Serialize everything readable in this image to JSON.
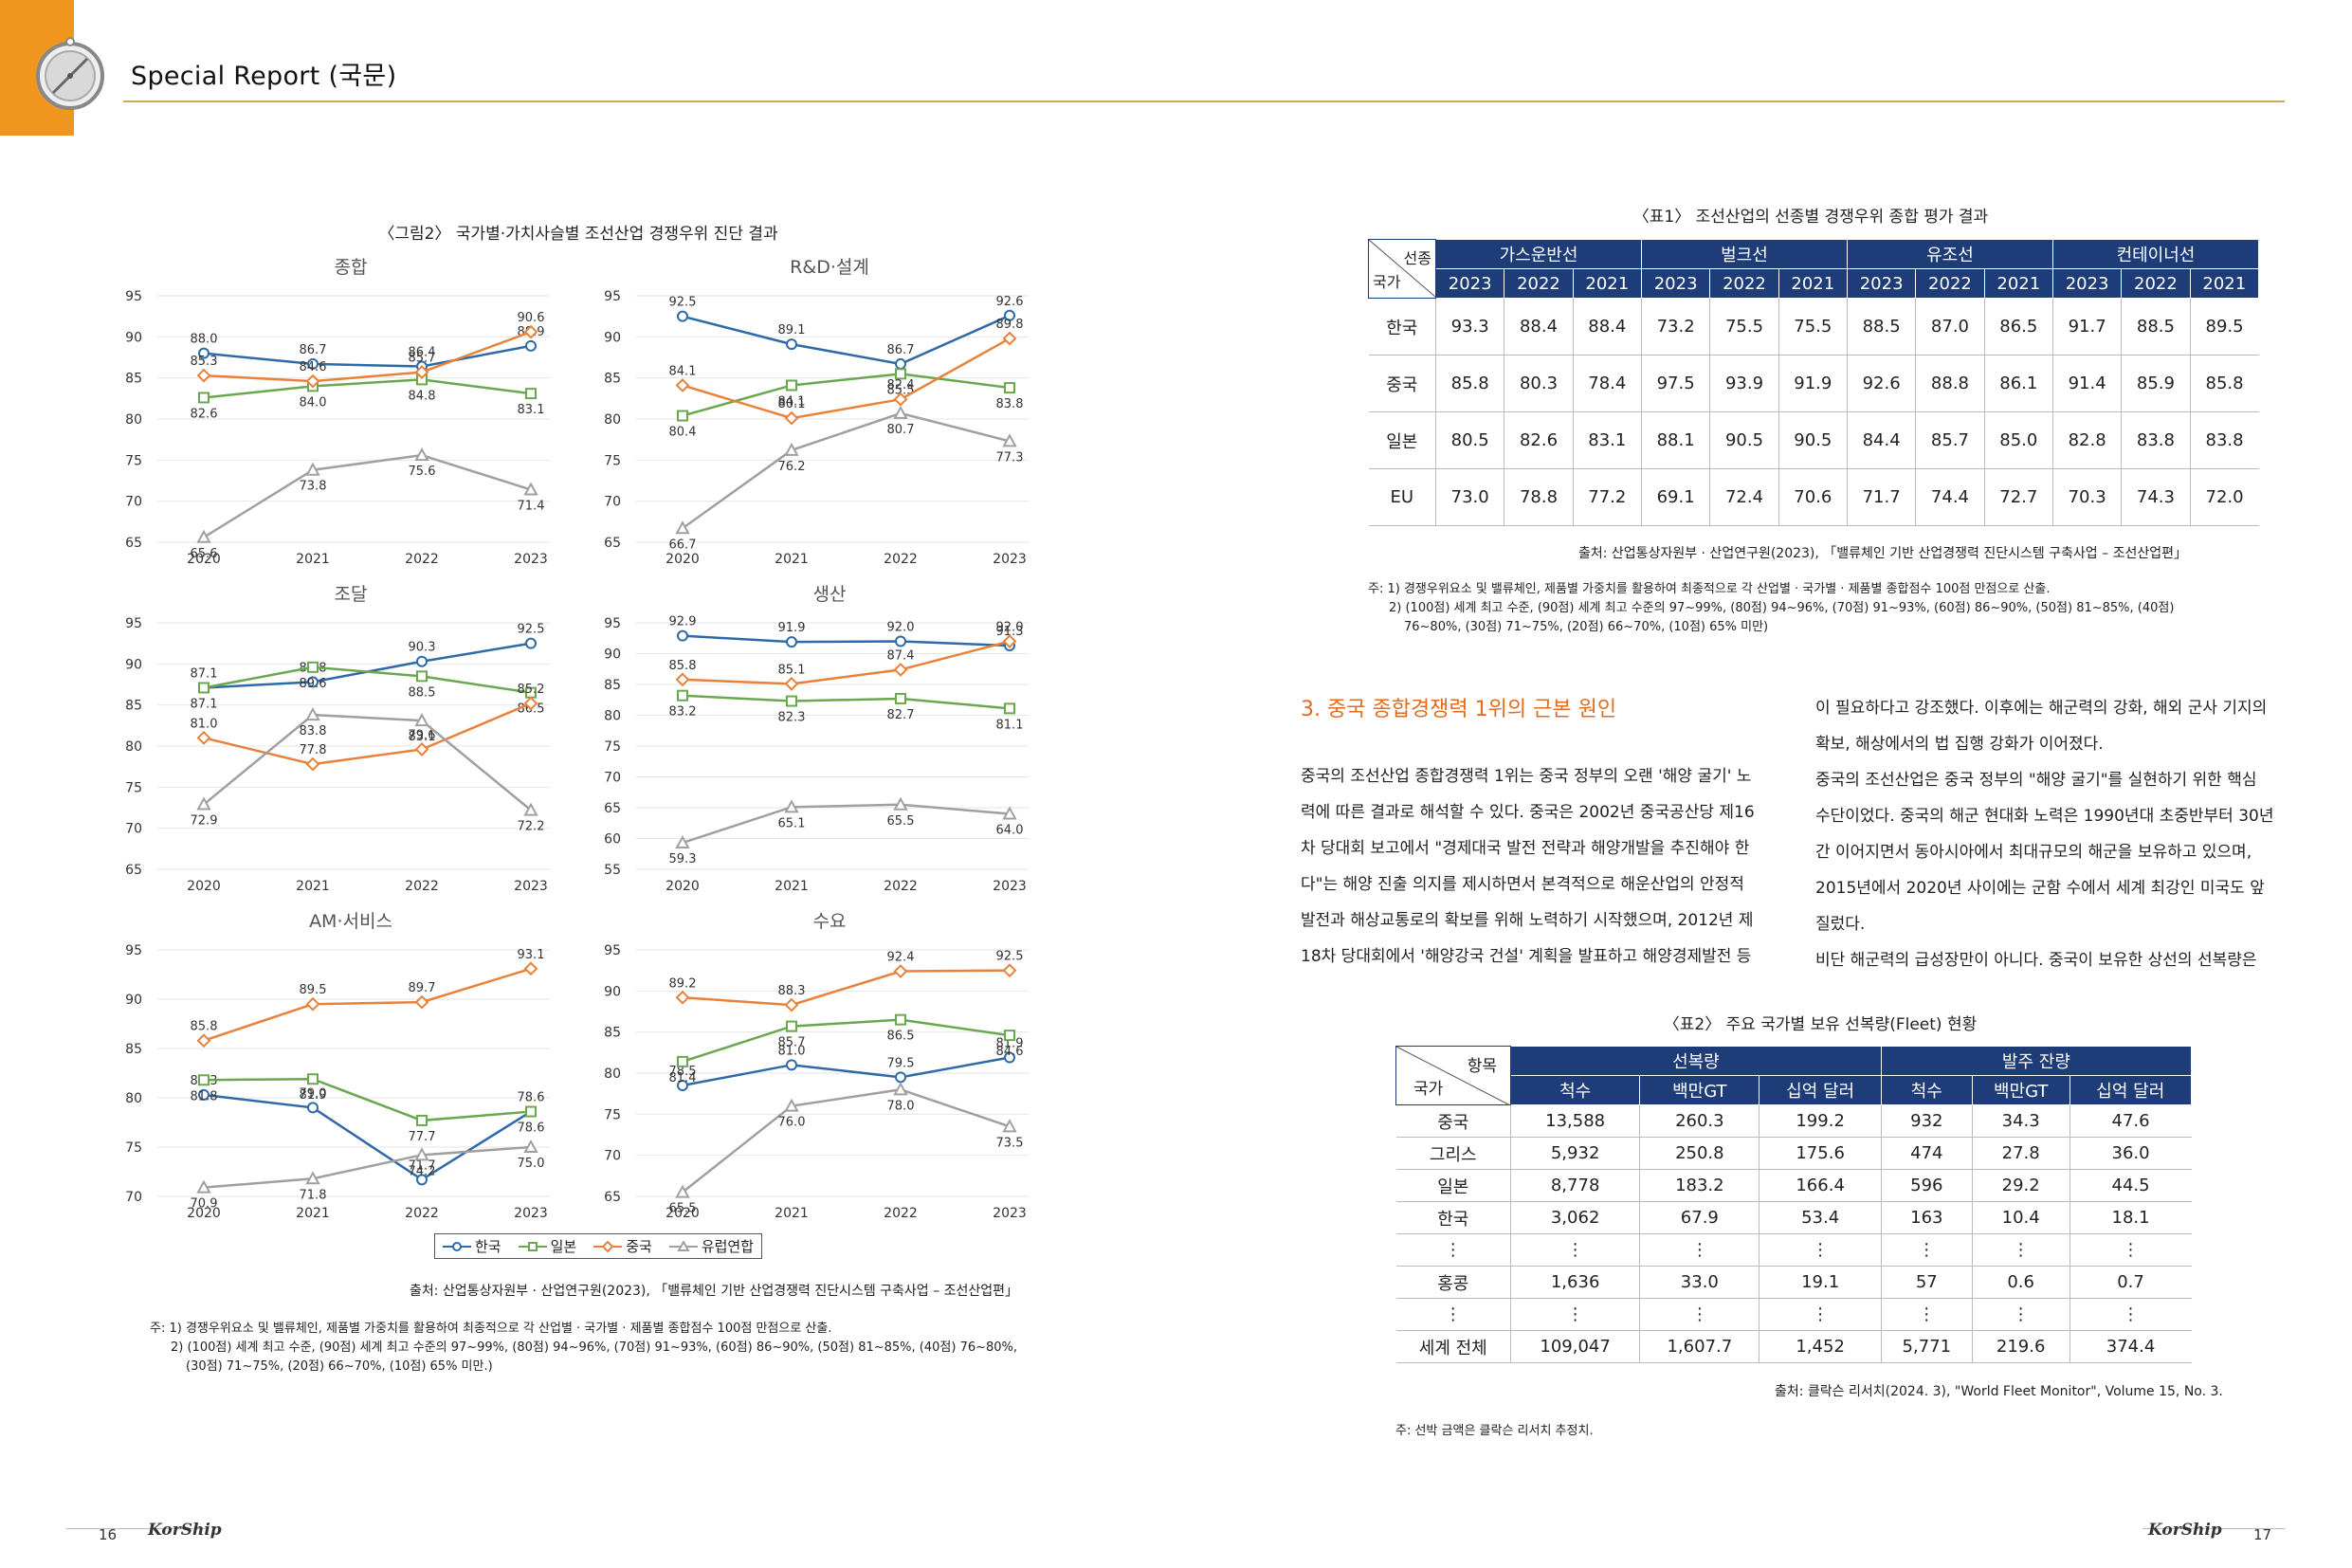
{
  "header": {
    "title": "Special Report (국문)"
  },
  "figure2": {
    "title": "〈그림2〉 국가별·가치사슬별 조선산업 경쟁우위 진단 결과",
    "source": "출처: 산업통상자원부 · 산업연구원(2023), 「밸류체인 기반 산업경쟁력 진단시스템 구축사업 – 조선산업편」",
    "note1": "주: 1) 경쟁우위요소 및 밸류체인, 제품별 가중치를 활용하여 최종적으로 각 산업별 · 국가별 · 제품별 종합점수 100점 만점으로 산출.",
    "note2": "2) (100점) 세계 최고 수준, (90점) 세계 최고 수준의 97~99%, (80점) 94~96%, (70점) 91~93%, (60점) 86~90%, (50점) 81~85%, (40점) 76~80%,",
    "note3": "(30점) 71~75%, (20점) 66~70%, (10점) 65% 미만.)",
    "legend": [
      "한국",
      "일본",
      "중국",
      "유럽연합"
    ]
  },
  "chart_data": [
    {
      "type": "line",
      "title": "종합",
      "categories": [
        "2020",
        "2021",
        "2022",
        "2023"
      ],
      "ylim": [
        65,
        95
      ],
      "yticks": [
        65,
        70,
        75,
        80,
        85,
        90,
        95
      ],
      "series": [
        {
          "name": "한국",
          "values": [
            88.0,
            86.7,
            86.4,
            88.9
          ]
        },
        {
          "name": "일본",
          "values": [
            82.6,
            84.0,
            84.8,
            83.1
          ]
        },
        {
          "name": "중국",
          "values": [
            85.3,
            84.6,
            85.7,
            90.6
          ]
        },
        {
          "name": "유럽연합",
          "values": [
            65.6,
            73.8,
            75.6,
            71.4
          ]
        }
      ]
    },
    {
      "type": "line",
      "title": "R&D·설계",
      "categories": [
        "2020",
        "2021",
        "2022",
        "2023"
      ],
      "ylim": [
        65,
        95
      ],
      "yticks": [
        65,
        70,
        75,
        80,
        85,
        90,
        95
      ],
      "series": [
        {
          "name": "한국",
          "values": [
            92.5,
            89.1,
            86.7,
            92.6
          ]
        },
        {
          "name": "일본",
          "values": [
            80.4,
            84.1,
            85.5,
            83.8
          ]
        },
        {
          "name": "중국",
          "values": [
            84.1,
            80.1,
            82.4,
            89.8
          ]
        },
        {
          "name": "유럽연합",
          "values": [
            66.7,
            76.2,
            80.7,
            77.3
          ]
        }
      ]
    },
    {
      "type": "line",
      "title": "조달",
      "categories": [
        "2020",
        "2021",
        "2022",
        "2023"
      ],
      "ylim": [
        65,
        95
      ],
      "yticks": [
        65,
        70,
        75,
        80,
        85,
        90,
        95
      ],
      "series": [
        {
          "name": "한국",
          "values": [
            87.1,
            87.8,
            90.3,
            92.5
          ]
        },
        {
          "name": "일본",
          "values": [
            87.1,
            89.6,
            88.5,
            86.5
          ]
        },
        {
          "name": "중국",
          "values": [
            81.0,
            77.8,
            79.6,
            85.2
          ]
        },
        {
          "name": "유럽연합",
          "values": [
            72.9,
            83.8,
            83.1,
            72.2
          ]
        }
      ]
    },
    {
      "type": "line",
      "title": "생산",
      "categories": [
        "2020",
        "2021",
        "2022",
        "2023"
      ],
      "ylim": [
        55,
        95
      ],
      "yticks": [
        55,
        60,
        65,
        70,
        75,
        80,
        85,
        90,
        95
      ],
      "series": [
        {
          "name": "한국",
          "values": [
            92.9,
            91.9,
            92.0,
            91.3
          ]
        },
        {
          "name": "일본",
          "values": [
            83.2,
            82.3,
            82.7,
            81.1
          ]
        },
        {
          "name": "중국",
          "values": [
            85.8,
            85.1,
            87.4,
            92.0
          ]
        },
        {
          "name": "유럽연합",
          "values": [
            59.3,
            65.1,
            65.5,
            64.0
          ]
        }
      ]
    },
    {
      "type": "line",
      "title": "AM·서비스",
      "categories": [
        "2020",
        "2021",
        "2022",
        "2023"
      ],
      "ylim": [
        70,
        95
      ],
      "yticks": [
        70,
        75,
        80,
        85,
        90,
        95
      ],
      "series": [
        {
          "name": "한국",
          "values": [
            80.3,
            79.0,
            71.7,
            78.6
          ]
        },
        {
          "name": "일본",
          "values": [
            81.8,
            81.9,
            77.7,
            78.6
          ]
        },
        {
          "name": "중국",
          "values": [
            85.8,
            89.5,
            89.7,
            93.1
          ]
        },
        {
          "name": "유럽연합",
          "values": [
            70.9,
            71.8,
            74.2,
            75.0
          ]
        }
      ]
    },
    {
      "type": "line",
      "title": "수요",
      "categories": [
        "2020",
        "2021",
        "2022",
        "2023"
      ],
      "ylim": [
        65,
        95
      ],
      "yticks": [
        65,
        70,
        75,
        80,
        85,
        90,
        95
      ],
      "series": [
        {
          "name": "한국",
          "values": [
            78.5,
            81.0,
            79.5,
            81.9
          ]
        },
        {
          "name": "일본",
          "values": [
            81.4,
            85.7,
            86.5,
            84.6
          ]
        },
        {
          "name": "중국",
          "values": [
            89.2,
            88.3,
            92.4,
            92.5
          ]
        },
        {
          "name": "유럽연합",
          "values": [
            65.5,
            76.0,
            78.0,
            73.5
          ]
        }
      ]
    }
  ],
  "colors": {
    "korea": "#2e6aa8",
    "japan": "#6aa84f",
    "china": "#e8823a",
    "eu": "#a0a0a0",
    "table_header": "#1e3d78",
    "accent": "#e36c1f",
    "orange_tab": "#f0961e"
  },
  "table1": {
    "title": "〈표1〉 조선산업의 선종별 경쟁우위 종합 평가 결과",
    "corner_top": "선종",
    "corner_bottom": "국가",
    "groups": [
      "가스운반선",
      "벌크선",
      "유조선",
      "컨테이너선"
    ],
    "years": [
      "2023",
      "2022",
      "2021",
      "2023",
      "2022",
      "2021",
      "2023",
      "2022",
      "2021",
      "2023",
      "2022",
      "2021"
    ],
    "rows": [
      {
        "country": "한국",
        "values": [
          "93.3",
          "88.4",
          "88.4",
          "73.2",
          "75.5",
          "75.5",
          "88.5",
          "87.0",
          "86.5",
          "91.7",
          "88.5",
          "89.5"
        ]
      },
      {
        "country": "중국",
        "values": [
          "85.8",
          "80.3",
          "78.4",
          "97.5",
          "93.9",
          "91.9",
          "92.6",
          "88.8",
          "86.1",
          "91.4",
          "85.9",
          "85.8"
        ]
      },
      {
        "country": "일본",
        "values": [
          "80.5",
          "82.6",
          "83.1",
          "88.1",
          "90.5",
          "90.5",
          "84.4",
          "85.7",
          "85.0",
          "82.8",
          "83.8",
          "83.8"
        ]
      },
      {
        "country": "EU",
        "values": [
          "73.0",
          "78.8",
          "77.2",
          "69.1",
          "72.4",
          "70.6",
          "71.7",
          "74.4",
          "72.7",
          "70.3",
          "74.3",
          "72.0"
        ]
      }
    ],
    "source": "출처: 산업통상자원부 · 산업연구원(2023), 「밸류체인 기반 산업경쟁력 진단시스템 구축사업 – 조선산업편」",
    "note1": "주: 1) 경쟁우위요소 및 밸류체인, 제품별 가중치를 활용하여 최종적으로 각 산업별 · 국가별 · 제품별 종합점수 100점 만점으로 산출.",
    "note2": "2) (100점) 세계 최고 수준, (90점) 세계 최고 수준의 97~99%, (80점) 94~96%, (70점) 91~93%, (60점) 86~90%, (50점) 81~85%, (40점)",
    "note3": "76~80%, (30점) 71~75%, (20점) 66~70%, (10점) 65% 미만)"
  },
  "section3": {
    "heading": "3. 중국 종합경쟁력 1위의 근본 원인",
    "left_lines": [
      "중국의 조선산업 종합경쟁력 1위는 중국 정부의 오랜 '해양 굴기' 노",
      "력에 따른 결과로 해석할 수 있다. 중국은 2002년 중국공산당 제16",
      "차 당대회 보고에서 \"경제대국 발전 전략과 해양개발을 추진해야 한",
      "다\"는 해양 진출 의지를 제시하면서 본격적으로 해운산업의 안정적",
      "발전과 해상교통로의 확보를 위해 노력하기 시작했으며, 2012년 제",
      "18차 당대회에서 '해양강국 건설' 계획을 발표하고 해양경제발전 등"
    ],
    "right_lines": [
      "이 필요하다고 강조했다. 이후에는 해군력의 강화, 해외 군사 기지의",
      "확보, 해상에서의 법 집행 강화가 이어졌다.",
      "중국의 조선산업은 중국 정부의 \"해양 굴기\"를 실현하기 위한 핵심",
      "수단이었다. 중국의 해군 현대화 노력은 1990년대 초중반부터 30년",
      "간 이어지면서 동아시아에서 최대규모의 해군을 보유하고 있으며,",
      "2015년에서 2020년 사이에는 군함 수에서 세계 최강인 미국도 앞",
      "질렀다.",
      "비단 해군력의 급성장만이 아니다. 중국이 보유한 상선의 선복량은"
    ]
  },
  "table2": {
    "title": "〈표2〉 주요 국가별 보유 선복량(Fleet) 현황",
    "corner_top": "항목",
    "corner_bottom": "국가",
    "groups": [
      "선복량",
      "발주 잔량"
    ],
    "subheaders": [
      "척수",
      "백만GT",
      "십억 달러",
      "척수",
      "백만GT",
      "십억 달러"
    ],
    "rows": [
      {
        "country": "중국",
        "values": [
          "13,588",
          "260.3",
          "199.2",
          "932",
          "34.3",
          "47.6"
        ]
      },
      {
        "country": "그리스",
        "values": [
          "5,932",
          "250.8",
          "175.6",
          "474",
          "27.8",
          "36.0"
        ]
      },
      {
        "country": "일본",
        "values": [
          "8,778",
          "183.2",
          "166.4",
          "596",
          "29.2",
          "44.5"
        ]
      },
      {
        "country": "한국",
        "values": [
          "3,062",
          "67.9",
          "53.4",
          "163",
          "10.4",
          "18.1"
        ]
      },
      {
        "country": "⋮",
        "values": [
          "⋮",
          "⋮",
          "⋮",
          "⋮",
          "⋮",
          "⋮"
        ]
      },
      {
        "country": "홍콩",
        "values": [
          "1,636",
          "33.0",
          "19.1",
          "57",
          "0.6",
          "0.7"
        ]
      },
      {
        "country": "⋮",
        "values": [
          "⋮",
          "⋮",
          "⋮",
          "⋮",
          "⋮",
          "⋮"
        ]
      },
      {
        "country": "세계 전체",
        "values": [
          "109,047",
          "1,607.7",
          "1,452",
          "5,771",
          "219.6",
          "374.4"
        ]
      }
    ],
    "source": "출처: 클락슨 리서치(2024. 3), \"World Fleet Monitor\", Volume 15, No. 3.",
    "note": "주: 선박 금액은 클락슨 리서치 추정치."
  },
  "footer": {
    "left_page": "16",
    "right_page": "17",
    "logo_left": "KorShip",
    "logo_right": "KorShip"
  }
}
